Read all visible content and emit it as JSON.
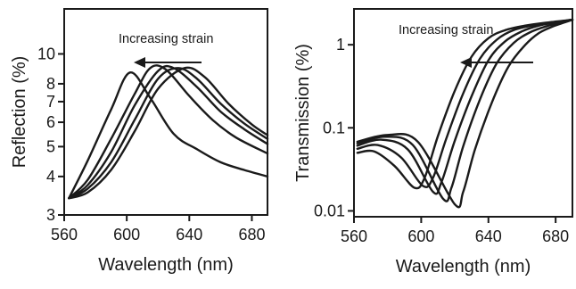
{
  "chart_data": [
    {
      "type": "line",
      "xlabel": "Wavelength (nm)",
      "ylabel": "Reflection (%)",
      "xscale": "linear",
      "yscale": "log",
      "xlim": [
        560,
        690
      ],
      "ylim": [
        3,
        14
      ],
      "xticks": [
        560,
        600,
        640,
        680
      ],
      "xtick_labels": [
        "560",
        "600",
        "640",
        "680"
      ],
      "yticks": [
        3,
        4,
        5,
        6,
        7,
        8,
        10
      ],
      "ytick_labels": [
        "3",
        "4",
        "5",
        "6",
        "7",
        "8",
        "10"
      ],
      "annotation": "Increasing strain",
      "arrow_direction": "left",
      "series": [
        {
          "x": [
            563,
            575,
            590,
            602,
            615,
            630,
            645,
            660,
            675,
            690
          ],
          "y": [
            3.4,
            4.5,
            6.6,
            8.7,
            7.2,
            5.5,
            4.9,
            4.45,
            4.2,
            4.0
          ]
        },
        {
          "x": [
            563,
            575,
            590,
            605,
            615,
            625,
            640,
            655,
            670,
            690
          ],
          "y": [
            3.4,
            3.9,
            5.3,
            7.4,
            9.0,
            8.9,
            7.3,
            6.1,
            5.35,
            4.75
          ]
        },
        {
          "x": [
            563,
            575,
            590,
            605,
            620,
            630,
            645,
            660,
            675,
            690
          ],
          "y": [
            3.4,
            3.75,
            4.8,
            6.8,
            8.8,
            9.0,
            7.8,
            6.5,
            5.7,
            5.1
          ]
        },
        {
          "x": [
            563,
            575,
            590,
            605,
            620,
            633,
            645,
            660,
            675,
            690
          ],
          "y": [
            3.4,
            3.65,
            4.45,
            6.1,
            8.3,
            9.0,
            8.3,
            6.9,
            5.95,
            5.3
          ]
        },
        {
          "x": [
            563,
            575,
            590,
            605,
            620,
            637,
            650,
            665,
            680,
            690
          ],
          "y": [
            3.4,
            3.55,
            4.2,
            5.6,
            7.7,
            9.0,
            8.4,
            6.9,
            5.9,
            5.45
          ]
        }
      ]
    },
    {
      "type": "line",
      "xlabel": "Wavelength (nm)",
      "ylabel": "Transmission (%)",
      "xscale": "linear",
      "yscale": "log",
      "xlim": [
        560,
        690
      ],
      "ylim": [
        0.0085,
        2.7
      ],
      "xticks": [
        560,
        600,
        640,
        680
      ],
      "xtick_labels": [
        "560",
        "600",
        "640",
        "680"
      ],
      "yticks": [
        0.01,
        0.1,
        1
      ],
      "ytick_labels": [
        "0.01",
        "0.1",
        "1"
      ],
      "annotation": "Increasing strain",
      "arrow_direction": "left",
      "series": [
        {
          "x": [
            562,
            572,
            584,
            596,
            602,
            610,
            620,
            630,
            640,
            650,
            662,
            675,
            690
          ],
          "y": [
            0.05,
            0.052,
            0.035,
            0.019,
            0.025,
            0.08,
            0.28,
            0.72,
            1.2,
            1.5,
            1.7,
            1.85,
            2.0
          ]
        },
        {
          "x": [
            562,
            574,
            588,
            601,
            607,
            615,
            625,
            635,
            645,
            655,
            667,
            678,
            690
          ],
          "y": [
            0.056,
            0.062,
            0.044,
            0.02,
            0.025,
            0.075,
            0.26,
            0.68,
            1.15,
            1.5,
            1.72,
            1.85,
            2.0
          ]
        },
        {
          "x": [
            562,
            576,
            592,
            607,
            612,
            620,
            630,
            640,
            650,
            660,
            670,
            680,
            690
          ],
          "y": [
            0.061,
            0.072,
            0.055,
            0.017,
            0.022,
            0.07,
            0.24,
            0.65,
            1.1,
            1.45,
            1.7,
            1.85,
            2.0
          ]
        },
        {
          "x": [
            562,
            578,
            595,
            613,
            618,
            625,
            635,
            645,
            655,
            665,
            675,
            683,
            690
          ],
          "y": [
            0.065,
            0.078,
            0.062,
            0.014,
            0.019,
            0.06,
            0.22,
            0.6,
            1.05,
            1.42,
            1.68,
            1.85,
            2.0
          ]
        },
        {
          "x": [
            562,
            580,
            598,
            620,
            625,
            632,
            642,
            652,
            662,
            670,
            678,
            685,
            690
          ],
          "y": [
            0.068,
            0.082,
            0.068,
            0.012,
            0.017,
            0.055,
            0.2,
            0.55,
            1.0,
            1.38,
            1.65,
            1.85,
            2.0
          ]
        }
      ]
    }
  ]
}
